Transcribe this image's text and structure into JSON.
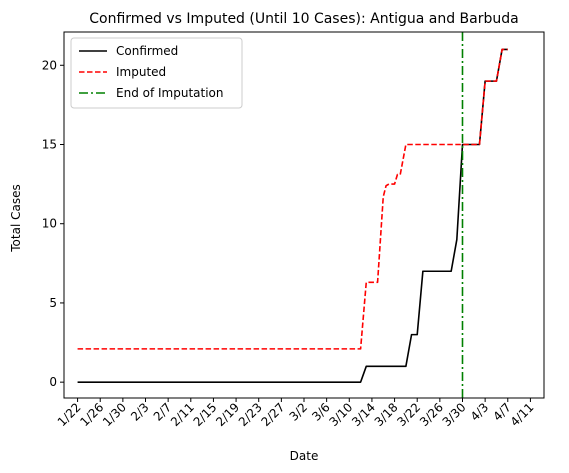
{
  "chart_data": {
    "type": "line",
    "title": "Confirmed vs Imputed (Until 10 Cases): Antigua and Barbuda",
    "xlabel": "Date",
    "ylabel": "Total Cases",
    "x_tick_labels": [
      "1/22",
      "1/26",
      "1/30",
      "2/3",
      "2/7",
      "2/11",
      "2/15",
      "2/19",
      "2/23",
      "2/27",
      "3/2",
      "3/6",
      "3/10",
      "3/14",
      "3/18",
      "3/22",
      "3/26",
      "3/30",
      "4/3",
      "4/7",
      "4/11"
    ],
    "x_days_range": [
      0,
      80
    ],
    "xlim": [
      -2.4,
      82.4
    ],
    "ylim": [
      -1.0,
      22.1
    ],
    "y_ticks": [
      0,
      5,
      10,
      15,
      20
    ],
    "grid": false,
    "legend_position": "top-left",
    "series": [
      {
        "name": "Confirmed",
        "color": "#000000",
        "style": "solid",
        "points": [
          [
            0,
            0
          ],
          [
            50,
            0
          ],
          [
            51,
            1
          ],
          [
            58,
            1
          ],
          [
            59,
            3
          ],
          [
            60,
            3
          ],
          [
            61,
            7
          ],
          [
            66,
            7
          ],
          [
            67,
            9
          ],
          [
            68,
            15
          ],
          [
            71,
            15
          ],
          [
            72,
            19
          ],
          [
            74,
            19
          ],
          [
            75,
            21
          ],
          [
            76,
            21
          ]
        ]
      },
      {
        "name": "Imputed",
        "color": "#ff0000",
        "style": "dashed",
        "points": [
          [
            0,
            2.1
          ],
          [
            50,
            2.1
          ],
          [
            51,
            6.3
          ],
          [
            53,
            6.3
          ],
          [
            54,
            11.7
          ],
          [
            54.5,
            12.4
          ],
          [
            55,
            12.5
          ],
          [
            56,
            12.5
          ],
          [
            56.5,
            13.1
          ],
          [
            57,
            13.1
          ],
          [
            58,
            15
          ],
          [
            71,
            15
          ],
          [
            72,
            19
          ],
          [
            74,
            19
          ],
          [
            75,
            21
          ],
          [
            76,
            21
          ]
        ]
      },
      {
        "name": "End of Imputation",
        "color": "#008000",
        "style": "dashdot",
        "vertical_x": 68
      }
    ]
  }
}
